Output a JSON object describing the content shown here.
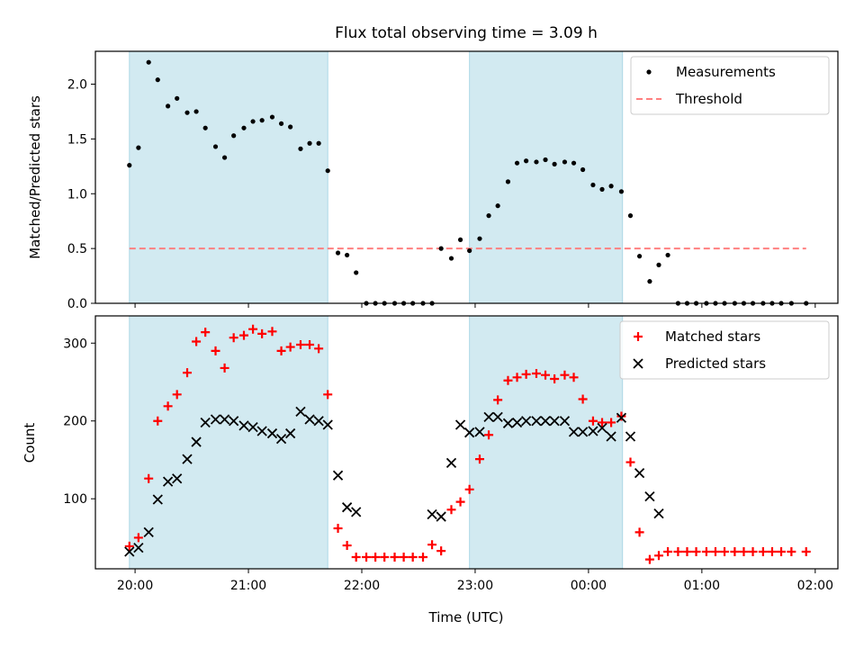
{
  "colors": {
    "shade": "#add8e6",
    "measurement": "#000000",
    "threshold": "#ff8080",
    "matched": "#ff0000",
    "predicted": "#000000"
  },
  "chart_data": [
    {
      "type": "scatter",
      "title": "Flux total observing time = 3.09 h",
      "xlabel": "",
      "ylabel": "Matched/Predicted stars",
      "x_unit": "hours from 20:00 UTC",
      "xlim": [
        -0.35,
        6.2
      ],
      "ylim": [
        0,
        2.3
      ],
      "yticks": [
        "0.0",
        "0.5",
        "1.0",
        "1.5",
        "2.0"
      ],
      "shaded_intervals": [
        [
          -0.05,
          1.7
        ],
        [
          2.95,
          4.3
        ]
      ],
      "legend": {
        "position": "top-right",
        "entries": [
          "Measurements",
          "Threshold"
        ]
      },
      "threshold": {
        "name": "Threshold",
        "y": 0.5,
        "x_range": [
          -0.05,
          5.92
        ]
      },
      "series": [
        {
          "name": "Measurements",
          "x": [
            -0.05,
            0.03,
            0.12,
            0.2,
            0.29,
            0.37,
            0.46,
            0.54,
            0.62,
            0.71,
            0.79,
            0.87,
            0.96,
            1.04,
            1.12,
            1.21,
            1.29,
            1.37,
            1.46,
            1.54,
            1.62,
            1.7,
            1.79,
            1.87,
            1.95,
            2.04,
            2.12,
            2.2,
            2.29,
            2.37,
            2.45,
            2.54,
            2.62,
            2.7,
            2.79,
            2.87,
            2.95,
            3.04,
            3.12,
            3.2,
            3.29,
            3.37,
            3.45,
            3.54,
            3.62,
            3.7,
            3.79,
            3.87,
            3.95,
            4.04,
            4.12,
            4.2,
            4.29,
            4.37,
            4.45,
            4.54,
            4.62,
            4.7,
            4.79,
            4.87,
            4.95,
            5.04,
            5.12,
            5.2,
            5.29,
            5.37,
            5.45,
            5.54,
            5.62,
            5.7,
            5.79,
            5.92
          ],
          "values": [
            1.26,
            1.42,
            2.2,
            2.04,
            1.8,
            1.87,
            1.74,
            1.75,
            1.6,
            1.43,
            1.33,
            1.53,
            1.6,
            1.66,
            1.67,
            1.7,
            1.64,
            1.61,
            1.41,
            1.46,
            1.46,
            1.21,
            0.46,
            0.44,
            0.28,
            0,
            0,
            0,
            0,
            0,
            0,
            0,
            0,
            0.5,
            0.41,
            0.58,
            0.48,
            0.59,
            0.8,
            0.89,
            1.11,
            1.28,
            1.3,
            1.29,
            1.31,
            1.27,
            1.29,
            1.28,
            1.22,
            1.08,
            1.04,
            1.07,
            1.02,
            0.8,
            0.43,
            0.2,
            0.35,
            0.44,
            0,
            0,
            0,
            0,
            0,
            0,
            0,
            0,
            0,
            0,
            0,
            0,
            0,
            0
          ]
        }
      ]
    },
    {
      "type": "scatter",
      "title": "",
      "xlabel": "Time (UTC)",
      "ylabel": "Count",
      "x_unit": "hours from 20:00 UTC",
      "xlim": [
        -0.35,
        6.2
      ],
      "ylim": [
        10,
        335
      ],
      "yticks": [
        "100",
        "200",
        "300"
      ],
      "xticks": [
        "20:00",
        "21:00",
        "22:00",
        "23:00",
        "00:00",
        "01:00",
        "02:00"
      ],
      "shaded_intervals": [
        [
          -0.05,
          1.7
        ],
        [
          2.95,
          4.3
        ]
      ],
      "legend": {
        "position": "top-right",
        "entries": [
          "Matched stars",
          "Predicted stars"
        ]
      },
      "series": [
        {
          "name": "Matched stars",
          "marker": "+",
          "x": [
            -0.05,
            0.03,
            0.12,
            0.2,
            0.29,
            0.37,
            0.46,
            0.54,
            0.62,
            0.71,
            0.79,
            0.87,
            0.96,
            1.04,
            1.12,
            1.21,
            1.29,
            1.37,
            1.46,
            1.54,
            1.62,
            1.7,
            1.79,
            1.87,
            1.95,
            2.04,
            2.12,
            2.2,
            2.29,
            2.37,
            2.45,
            2.54,
            2.62,
            2.7,
            2.79,
            2.87,
            2.95,
            3.04,
            3.12,
            3.2,
            3.29,
            3.37,
            3.45,
            3.54,
            3.62,
            3.7,
            3.79,
            3.87,
            3.95,
            4.04,
            4.12,
            4.2,
            4.29,
            4.37,
            4.45,
            4.54,
            4.62,
            4.7,
            4.79,
            4.87,
            4.95,
            5.04,
            5.12,
            5.2,
            5.29,
            5.37,
            5.45,
            5.54,
            5.62,
            5.7,
            5.79,
            5.92
          ],
          "values": [
            39,
            50,
            126,
            200,
            219,
            234,
            262,
            302,
            314,
            290,
            268,
            307,
            310,
            318,
            312,
            315,
            290,
            295,
            298,
            298,
            293,
            234,
            62,
            40,
            25,
            25,
            25,
            25,
            25,
            25,
            25,
            25,
            41,
            33,
            86,
            96,
            112,
            151,
            182,
            227,
            252,
            256,
            260,
            261,
            259,
            254,
            259,
            256,
            228,
            200,
            198,
            198,
            206,
            147,
            57,
            22,
            27,
            32,
            32,
            32,
            32,
            32,
            32,
            32,
            32,
            32,
            32,
            32,
            32,
            32,
            32,
            32
          ]
        },
        {
          "name": "Predicted stars",
          "marker": "x",
          "x": [
            -0.05,
            0.03,
            0.12,
            0.2,
            0.29,
            0.37,
            0.46,
            0.54,
            0.62,
            0.71,
            0.79,
            0.87,
            0.96,
            1.04,
            1.12,
            1.21,
            1.29,
            1.37,
            1.46,
            1.54,
            1.62,
            1.7,
            1.79,
            1.87,
            1.95,
            2.62,
            2.7,
            2.79,
            2.87,
            2.95,
            3.04,
            3.12,
            3.2,
            3.29,
            3.37,
            3.45,
            3.54,
            3.62,
            3.7,
            3.79,
            3.87,
            3.95,
            4.04,
            4.12,
            4.2,
            4.29,
            4.37,
            4.45,
            4.54,
            4.62
          ],
          "values": [
            32,
            37,
            57,
            99,
            122,
            126,
            151,
            173,
            198,
            202,
            202,
            200,
            194,
            192,
            187,
            184,
            177,
            184,
            212,
            202,
            200,
            195,
            130,
            89,
            83,
            80,
            77,
            146,
            195,
            185,
            186,
            205,
            205,
            197,
            198,
            200,
            200,
            200,
            200,
            200,
            186,
            186,
            187,
            191,
            180,
            204,
            180,
            133,
            103,
            81
          ]
        }
      ]
    }
  ]
}
